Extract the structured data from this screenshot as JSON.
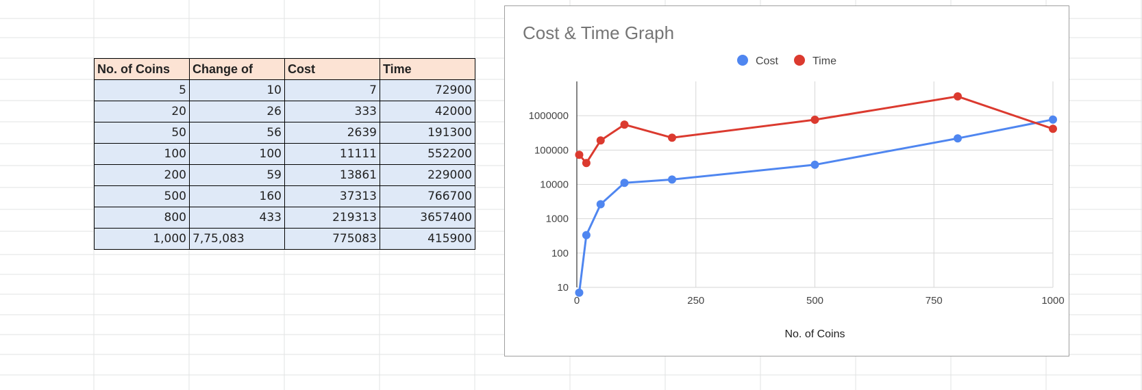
{
  "sheet": {
    "table": {
      "headers": [
        "No. of Coins",
        "Change of",
        "Cost",
        "Time"
      ],
      "rows": [
        [
          "5",
          "10",
          "7",
          "72900"
        ],
        [
          "20",
          "26",
          "333",
          "42000"
        ],
        [
          "50",
          "56",
          "2639",
          "191300"
        ],
        [
          "100",
          "100",
          "11111",
          "552200"
        ],
        [
          "200",
          "59",
          "13861",
          "229000"
        ],
        [
          "500",
          "160",
          "37313",
          "766700"
        ],
        [
          "800",
          "433",
          "219313",
          "3657400"
        ],
        [
          "1,000",
          "7,75,083",
          "775083",
          "415900"
        ]
      ]
    }
  },
  "chart_data": {
    "type": "line",
    "title": "Cost & Time Graph",
    "xlabel": "No. of Coins",
    "ylabel": "",
    "x": [
      5,
      20,
      50,
      100,
      200,
      500,
      800,
      1000
    ],
    "series": [
      {
        "name": "Cost",
        "color": "#4f86f0",
        "values": [
          7,
          333,
          2639,
          11111,
          13861,
          37313,
          219313,
          775083
        ]
      },
      {
        "name": "Time",
        "color": "#db3a2f",
        "values": [
          72900,
          42000,
          191300,
          552200,
          229000,
          766700,
          3657400,
          415900
        ]
      }
    ],
    "xlim": [
      0,
      1000
    ],
    "xticks": [
      "0",
      "250",
      "500",
      "750",
      "1000"
    ],
    "ylim": [
      10,
      3657400
    ],
    "yscale": "log",
    "yticks": [
      "10",
      "100",
      "1000",
      "10000",
      "100000",
      "1000000"
    ],
    "grid": true,
    "legend": "top"
  }
}
